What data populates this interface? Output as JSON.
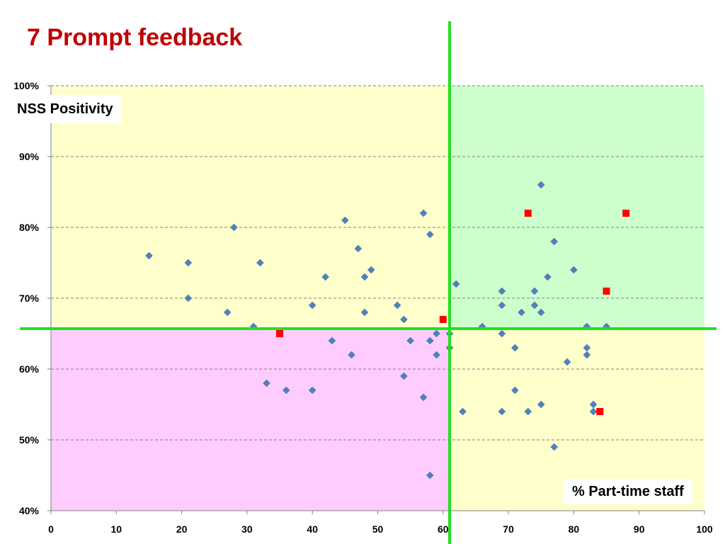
{
  "title": "7 Prompt feedback",
  "chart_data": {
    "type": "scatter",
    "title": "7 Prompt feedback",
    "xlabel": "% Part-time staff",
    "ylabel": "NSS Positivity",
    "xlim": [
      0,
      100
    ],
    "ylim": [
      40,
      100
    ],
    "x_ticks": [
      "0",
      "10",
      "20",
      "30",
      "40",
      "50",
      "60",
      "70",
      "80",
      "90",
      "100"
    ],
    "y_ticks": [
      "40%",
      "50%",
      "60%",
      "70%",
      "80%",
      "90%",
      "100%"
    ],
    "grid": true,
    "divider_lines": {
      "x": 61,
      "y": 65.7
    },
    "quadrant_colors": {
      "top_left": "#ffffcc",
      "top_right": "#ccffcc",
      "bottom_left": "#ffccff",
      "bottom_right": "#ffffcc"
    },
    "series": [
      {
        "marker": "diamond",
        "color": "#4f81bd",
        "points": [
          [
            15,
            76
          ],
          [
            21,
            75
          ],
          [
            21,
            70
          ],
          [
            27,
            68
          ],
          [
            28,
            80
          ],
          [
            31,
            66
          ],
          [
            32,
            75
          ],
          [
            33,
            58
          ],
          [
            36,
            57
          ],
          [
            40,
            69
          ],
          [
            40,
            57
          ],
          [
            42,
            73
          ],
          [
            43,
            64
          ],
          [
            45,
            81
          ],
          [
            46,
            62
          ],
          [
            47,
            77
          ],
          [
            48,
            73
          ],
          [
            48,
            68
          ],
          [
            49,
            74
          ],
          [
            53,
            69
          ],
          [
            54,
            67
          ],
          [
            54,
            59
          ],
          [
            55,
            64
          ],
          [
            57,
            82
          ],
          [
            57,
            56
          ],
          [
            58,
            79
          ],
          [
            58,
            64
          ],
          [
            58,
            45
          ],
          [
            59,
            65
          ],
          [
            59,
            62
          ],
          [
            61,
            65
          ],
          [
            61,
            63
          ],
          [
            62,
            72
          ],
          [
            63,
            54
          ],
          [
            66,
            66
          ],
          [
            69,
            71
          ],
          [
            69,
            69
          ],
          [
            69,
            65
          ],
          [
            69,
            54
          ],
          [
            71,
            63
          ],
          [
            71,
            57
          ],
          [
            72,
            68
          ],
          [
            73,
            54
          ],
          [
            74,
            71
          ],
          [
            74,
            69
          ],
          [
            75,
            86
          ],
          [
            75,
            68
          ],
          [
            75,
            55
          ],
          [
            76,
            73
          ],
          [
            77,
            78
          ],
          [
            77,
            49
          ],
          [
            79,
            61
          ],
          [
            80,
            74
          ],
          [
            82,
            66
          ],
          [
            82,
            63
          ],
          [
            82,
            62
          ],
          [
            83,
            55
          ],
          [
            83,
            54
          ],
          [
            85,
            66
          ]
        ]
      },
      {
        "marker": "square",
        "color": "#ff0000",
        "points": [
          [
            35,
            65
          ],
          [
            60,
            67
          ],
          [
            73,
            82
          ],
          [
            84,
            54
          ],
          [
            85,
            71
          ],
          [
            88,
            82
          ]
        ]
      }
    ]
  }
}
